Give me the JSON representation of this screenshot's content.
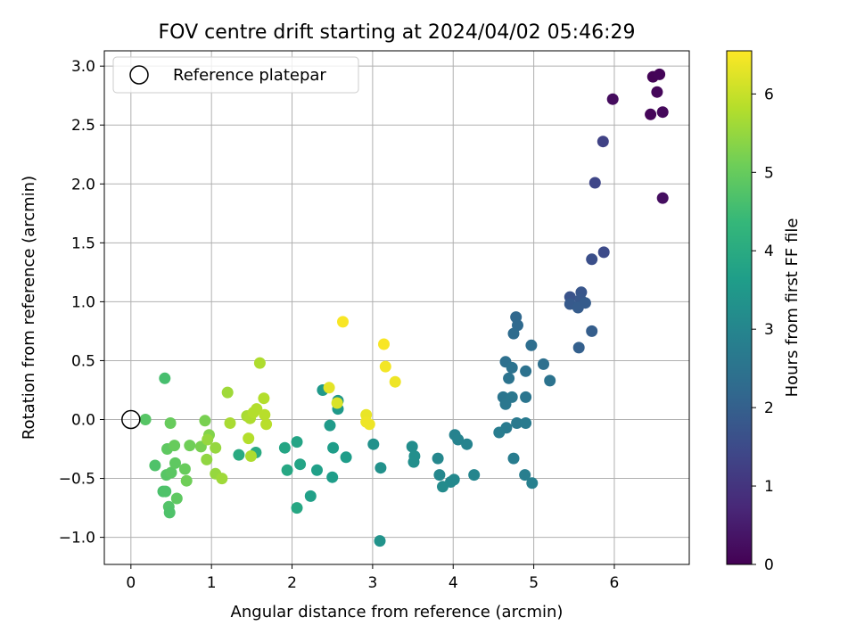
{
  "chart_data": {
    "type": "scatter",
    "title": "FOV centre drift starting at 2024/04/02 05:46:29",
    "xlabel": "Angular distance from reference (arcmin)",
    "ylabel": "Rotation from reference (arcmin)",
    "xlim": [
      -0.33,
      6.93
    ],
    "ylim": [
      -1.23,
      3.13
    ],
    "xticks": [
      0,
      1,
      2,
      3,
      4,
      5,
      6
    ],
    "yticks": [
      -1.0,
      -0.5,
      0.0,
      0.5,
      1.0,
      1.5,
      2.0,
      2.5,
      3.0
    ],
    "ytick_labels": [
      "−1.0",
      "−0.5",
      "0.0",
      "0.5",
      "1.0",
      "1.5",
      "2.0",
      "2.5",
      "3.0"
    ],
    "grid": true,
    "legend": {
      "placement": "top-left",
      "entries": [
        "Reference platepar"
      ]
    },
    "reference_point": {
      "x": 0,
      "y": 0,
      "label": "Reference platepar"
    },
    "colorbar": {
      "label": "Hours from first FF file",
      "colormap": "viridis",
      "range": [
        0,
        6.55
      ],
      "ticks": [
        0,
        1,
        2,
        3,
        4,
        5,
        6
      ]
    },
    "points": [
      [
        6.48,
        2.91,
        0.05
      ],
      [
        6.56,
        2.93,
        0.08
      ],
      [
        6.53,
        2.78,
        0.12
      ],
      [
        5.98,
        2.72,
        0.2
      ],
      [
        6.45,
        2.59,
        0.1
      ],
      [
        6.6,
        2.61,
        0.15
      ],
      [
        6.6,
        1.88,
        0.25
      ],
      [
        5.86,
        2.36,
        1.3
      ],
      [
        5.76,
        2.01,
        1.4
      ],
      [
        5.87,
        1.42,
        1.5
      ],
      [
        5.72,
        1.36,
        1.6
      ],
      [
        5.45,
        1.04,
        1.7
      ],
      [
        5.59,
        1.08,
        1.75
      ],
      [
        5.58,
        1.02,
        1.8
      ],
      [
        5.45,
        0.98,
        1.85
      ],
      [
        5.55,
        0.95,
        1.9
      ],
      [
        5.64,
        0.99,
        1.9
      ],
      [
        5.72,
        0.75,
        1.95
      ],
      [
        5.56,
        0.61,
        2.0
      ],
      [
        4.78,
        0.87,
        2.2
      ],
      [
        4.8,
        0.8,
        2.25
      ],
      [
        4.75,
        0.73,
        2.3
      ],
      [
        4.97,
        0.63,
        2.35
      ],
      [
        4.65,
        0.49,
        2.4
      ],
      [
        4.73,
        0.44,
        2.45
      ],
      [
        5.12,
        0.47,
        2.4
      ],
      [
        4.9,
        0.41,
        2.45
      ],
      [
        4.69,
        0.35,
        2.5
      ],
      [
        5.2,
        0.33,
        2.5
      ],
      [
        4.62,
        0.19,
        2.55
      ],
      [
        4.73,
        0.19,
        2.6
      ],
      [
        4.9,
        0.19,
        2.55
      ],
      [
        4.65,
        0.13,
        2.6
      ],
      [
        4.79,
        -0.03,
        2.65
      ],
      [
        4.9,
        -0.03,
        2.7
      ],
      [
        4.66,
        -0.07,
        2.7
      ],
      [
        4.57,
        -0.11,
        2.75
      ],
      [
        4.75,
        -0.33,
        2.75
      ],
      [
        4.89,
        -0.47,
        2.8
      ],
      [
        4.98,
        -0.54,
        2.85
      ],
      [
        4.02,
        -0.13,
        2.9
      ],
      [
        4.06,
        -0.17,
        2.95
      ],
      [
        4.17,
        -0.21,
        2.95
      ],
      [
        4.26,
        -0.47,
        3.0
      ],
      [
        3.81,
        -0.33,
        3.05
      ],
      [
        3.83,
        -0.47,
        3.05
      ],
      [
        4.01,
        -0.51,
        3.1
      ],
      [
        3.97,
        -0.53,
        3.1
      ],
      [
        3.87,
        -0.57,
        3.15
      ],
      [
        3.49,
        -0.23,
        3.2
      ],
      [
        3.52,
        -0.31,
        3.25
      ],
      [
        3.51,
        -0.36,
        3.25
      ],
      [
        3.1,
        -0.41,
        3.3
      ],
      [
        3.01,
        -0.21,
        3.3
      ],
      [
        3.09,
        -1.03,
        3.35
      ],
      [
        2.57,
        0.16,
        3.45
      ],
      [
        2.57,
        0.09,
        3.5
      ],
      [
        2.38,
        0.25,
        3.5
      ],
      [
        2.47,
        -0.05,
        3.55
      ],
      [
        2.51,
        -0.24,
        3.6
      ],
      [
        2.67,
        -0.32,
        3.6
      ],
      [
        2.5,
        -0.49,
        3.6
      ],
      [
        2.31,
        -0.43,
        3.7
      ],
      [
        2.23,
        -0.65,
        3.7
      ],
      [
        2.06,
        -0.19,
        3.8
      ],
      [
        2.1,
        -0.38,
        3.8
      ],
      [
        1.91,
        -0.24,
        3.85
      ],
      [
        1.94,
        -0.43,
        3.9
      ],
      [
        2.06,
        -0.75,
        3.9
      ],
      [
        1.55,
        -0.28,
        4.0
      ],
      [
        1.34,
        -0.3,
        4.0
      ],
      [
        0.42,
        0.35,
        4.6
      ],
      [
        0.18,
        0.0,
        4.8
      ],
      [
        0.3,
        -0.39,
        4.7
      ],
      [
        0.4,
        -0.61,
        4.65
      ],
      [
        0.43,
        -0.61,
        4.7
      ],
      [
        0.47,
        -0.74,
        4.75
      ],
      [
        0.48,
        -0.79,
        4.7
      ],
      [
        0.44,
        -0.47,
        4.8
      ],
      [
        0.5,
        -0.45,
        4.85
      ],
      [
        0.45,
        -0.25,
        4.9
      ],
      [
        0.55,
        -0.37,
        4.9
      ],
      [
        0.57,
        -0.67,
        4.9
      ],
      [
        0.49,
        -0.03,
        5.0
      ],
      [
        0.54,
        -0.22,
        5.0
      ],
      [
        0.67,
        -0.42,
        5.0
      ],
      [
        0.69,
        -0.52,
        5.1
      ],
      [
        0.73,
        -0.22,
        5.1
      ],
      [
        0.87,
        -0.23,
        5.2
      ],
      [
        0.92,
        -0.01,
        5.2
      ],
      [
        0.97,
        -0.13,
        5.3
      ],
      [
        0.95,
        -0.17,
        5.5
      ],
      [
        0.94,
        -0.34,
        5.45
      ],
      [
        1.05,
        -0.24,
        5.5
      ],
      [
        1.05,
        -0.46,
        5.5
      ],
      [
        1.13,
        -0.5,
        5.6
      ],
      [
        1.2,
        0.23,
        5.6
      ],
      [
        1.23,
        -0.03,
        5.7
      ],
      [
        1.44,
        0.03,
        5.7
      ],
      [
        1.48,
        0.01,
        5.75
      ],
      [
        1.52,
        0.06,
        5.8
      ],
      [
        1.56,
        0.09,
        5.8
      ],
      [
        1.6,
        0.48,
        5.75
      ],
      [
        1.65,
        0.18,
        5.8
      ],
      [
        1.66,
        0.04,
        5.85
      ],
      [
        1.68,
        -0.04,
        5.85
      ],
      [
        1.46,
        -0.16,
        5.8
      ],
      [
        1.49,
        -0.31,
        5.75
      ],
      [
        2.46,
        0.27,
        6.3
      ],
      [
        2.56,
        0.14,
        6.2
      ],
      [
        2.63,
        0.83,
        6.5
      ],
      [
        3.14,
        0.64,
        6.5
      ],
      [
        3.16,
        0.45,
        6.45
      ],
      [
        3.28,
        0.32,
        6.4
      ],
      [
        2.92,
        0.04,
        6.35
      ],
      [
        2.92,
        -0.02,
        6.4
      ],
      [
        2.96,
        -0.04,
        6.4
      ]
    ]
  }
}
